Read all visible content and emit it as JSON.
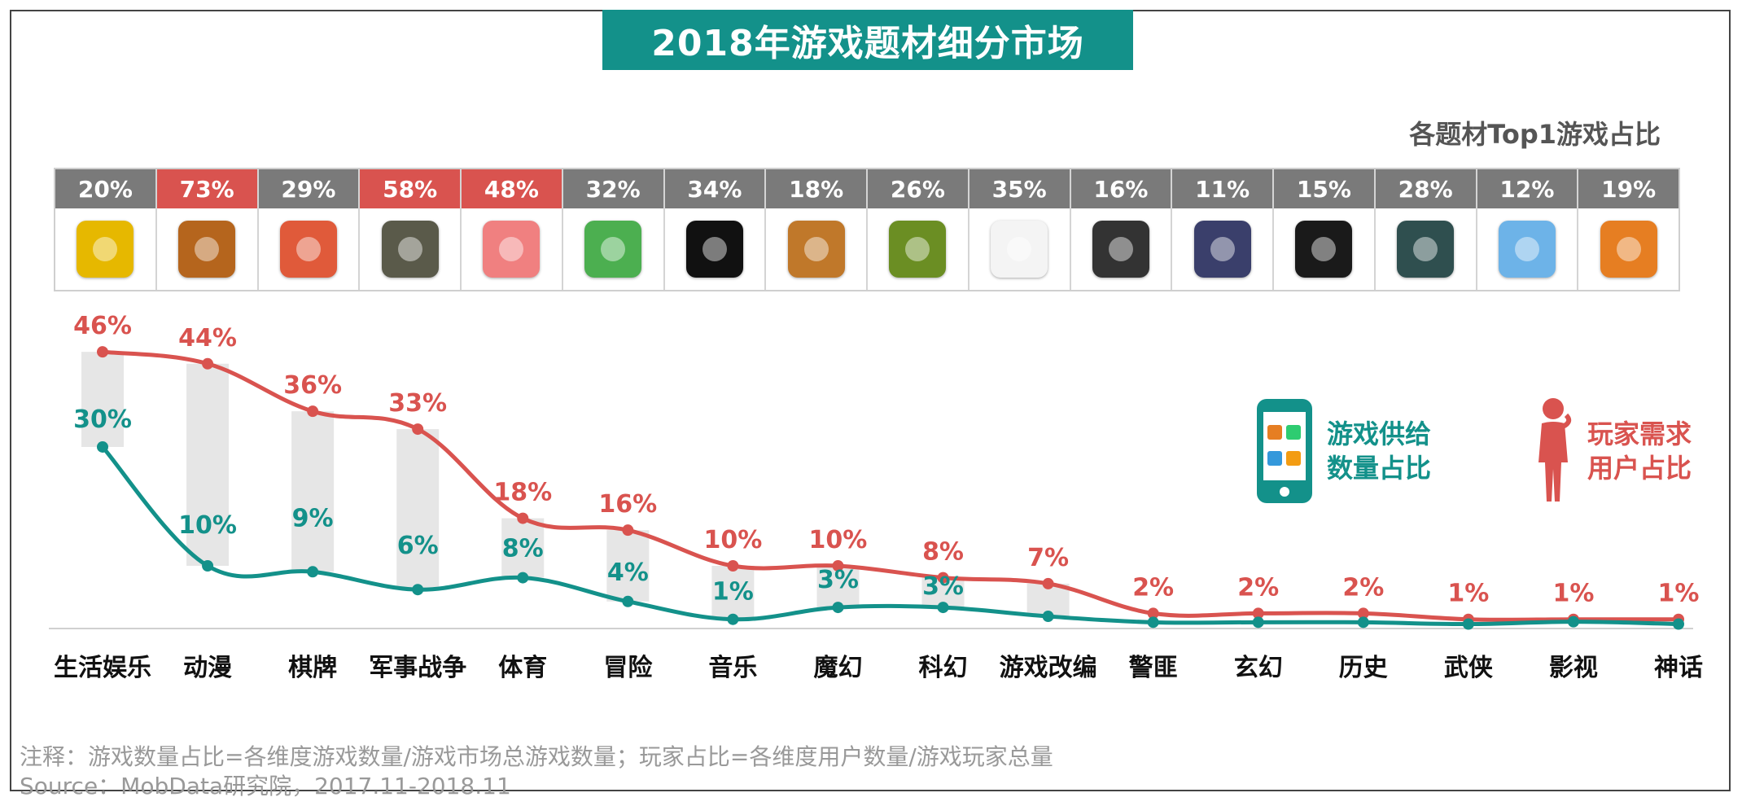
{
  "title": "2018年游戏题材细分市场",
  "subtitle": "各题材Top1游戏占比",
  "top1": [
    {
      "pct": "20%",
      "highlight": false,
      "icon": "cartoon-chick-game-icon",
      "color": "#e6b800"
    },
    {
      "pct": "73%",
      "highlight": true,
      "icon": "hero-warrior-game-icon",
      "color": "#b5651d"
    },
    {
      "pct": "29%",
      "highlight": false,
      "icon": "card-game-character-icon",
      "color": "#e05a3a"
    },
    {
      "pct": "58%",
      "highlight": true,
      "icon": "battle-royale-soldier-icon",
      "color": "#5a5a4a"
    },
    {
      "pct": "48%",
      "highlight": true,
      "icon": "sports-dance-girl-icon",
      "color": "#f08080"
    },
    {
      "pct": "32%",
      "highlight": false,
      "icon": "block-adventure-icon",
      "color": "#4caf50"
    },
    {
      "pct": "34%",
      "highlight": false,
      "icon": "piano-tiles-icon",
      "color": "#111111"
    },
    {
      "pct": "18%",
      "highlight": false,
      "icon": "clash-barbarian-icon",
      "color": "#c0782a"
    },
    {
      "pct": "26%",
      "highlight": false,
      "icon": "plants-zombies-icon",
      "color": "#6b8e23"
    },
    {
      "pct": "35%",
      "highlight": false,
      "icon": "red-blob-icon",
      "color": "#f4f4f4"
    },
    {
      "pct": "16%",
      "highlight": false,
      "icon": "grand-theft-auto-icon",
      "color": "#333333"
    },
    {
      "pct": "11%",
      "highlight": false,
      "icon": "white-hair-hero-icon",
      "color": "#3a3f6b"
    },
    {
      "pct": "15%",
      "highlight": false,
      "icon": "sha-calligraphy-icon",
      "color": "#1a1a1a"
    },
    {
      "pct": "28%",
      "highlight": false,
      "icon": "wuxia-swordsman-icon",
      "color": "#2f4f4f"
    },
    {
      "pct": "12%",
      "highlight": false,
      "icon": "zootopia-bunny-icon",
      "color": "#6db3e8"
    },
    {
      "pct": "19%",
      "highlight": false,
      "icon": "myth-monkey-icon",
      "color": "#e67e22"
    }
  ],
  "legend": {
    "supply_line1": "游戏供给",
    "supply_line2": "数量占比",
    "demand_line1": "玩家需求",
    "demand_line2": "用户占比",
    "supply_color": "#13918a",
    "demand_color": "#d9534f"
  },
  "note_line1": "注释：游戏数量占比=各维度游戏数量/游戏市场总游戏数量；玩家占比=各维度用户数量/游戏玩家总量",
  "note_line2": "Source：MobData研究院，2017.11-2018.11",
  "chart_data": {
    "type": "line",
    "categories": [
      "生活娱乐",
      "动漫",
      "棋牌",
      "军事战争",
      "体育",
      "冒险",
      "音乐",
      "魔幻",
      "科幻",
      "游戏改编",
      "警匪",
      "玄幻",
      "历史",
      "武侠",
      "影视",
      "神话"
    ],
    "series": [
      {
        "name": "游戏供给数量占比",
        "color": "#13918a",
        "values": [
          30,
          10,
          9,
          6,
          8,
          4,
          1,
          3,
          3,
          1.5,
          0.5,
          0.5,
          0.5,
          0.2,
          0.6,
          0.2
        ],
        "labels": [
          "30%",
          "10%",
          "9%",
          "6%",
          "8%",
          "4%",
          "1%",
          "3%",
          "3%",
          "",
          "",
          "",
          "",
          "",
          "",
          ""
        ]
      },
      {
        "name": "玩家需求用户占比",
        "color": "#d9534f",
        "values": [
          46,
          44,
          36,
          33,
          18,
          16,
          10,
          10,
          8,
          7,
          2,
          2,
          2,
          1,
          1,
          1
        ],
        "labels": [
          "46%",
          "44%",
          "36%",
          "33%",
          "18%",
          "16%",
          "10%",
          "10%",
          "8%",
          "7%",
          "2%",
          "2%",
          "2%",
          "1%",
          "1%",
          "1%"
        ]
      }
    ],
    "ylim": [
      0,
      50
    ]
  }
}
